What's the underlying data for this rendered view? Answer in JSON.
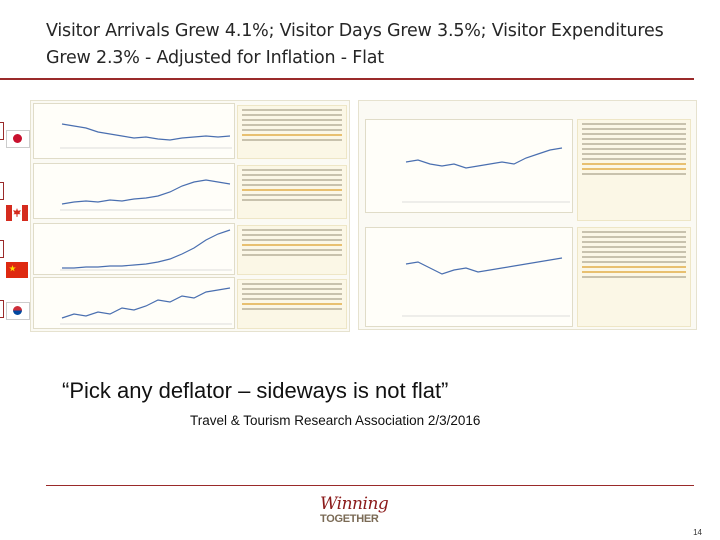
{
  "slide": {
    "title": "Visitor Arrivals Grew 4.1%; Visitor Days Grew 3.5%; Visitor Expenditures Grew 2.3% - Adjusted for Inflation - Flat",
    "quote": "“Pick any deflator – sideways is not flat”",
    "source": "Travel & Tourism Research Association 2/3/2016",
    "page_number": "14"
  },
  "logo": {
    "line1": "Winning",
    "line2": "TOGETHER"
  },
  "flags": [
    "japan-flag",
    "canada-flag",
    "china-flag",
    "korea-flag"
  ],
  "colors": {
    "accent": "#9a2a2a",
    "chart_line": "#4a6fb0"
  }
}
